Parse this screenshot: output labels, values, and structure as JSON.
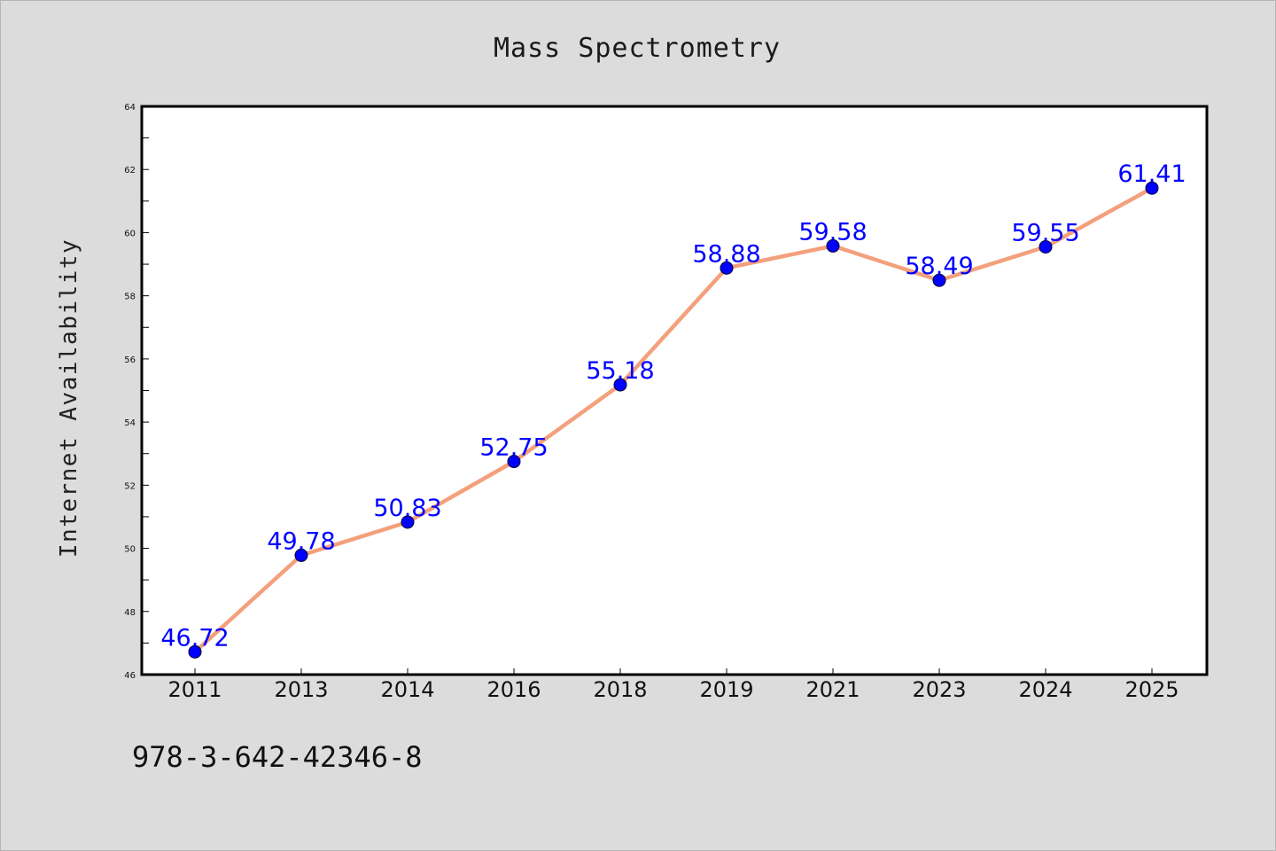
{
  "chart_data": {
    "type": "line",
    "title": "Mass Spectrometry",
    "xlabel": "",
    "ylabel": "Internet Availability",
    "x": [
      "2011",
      "2013",
      "2014",
      "2016",
      "2018",
      "2019",
      "2021",
      "2023",
      "2024",
      "2025"
    ],
    "series": [
      {
        "values": [
          46.72,
          49.78,
          50.83,
          52.75,
          55.18,
          58.88,
          59.58,
          58.49,
          59.55,
          61.41
        ],
        "labels": [
          "46.72",
          "49.78",
          "50.83",
          "52.75",
          "55.18",
          "58.88",
          "59.58",
          "58.49",
          "59.55",
          "61.41"
        ],
        "line_color": "#f4a07c",
        "marker_color": "#0000ff"
      }
    ],
    "ylim": [
      46,
      64
    ],
    "yticks": [
      "46",
      "48",
      "50",
      "52",
      "54",
      "56",
      "58",
      "60",
      "62",
      "64"
    ],
    "grid": false,
    "legend": "none"
  },
  "footer_text": "978-3-642-42346-8",
  "colors": {
    "background": "#dcdcdc",
    "plot_area": "#ffffff",
    "line": "#f4a07c",
    "marker": "#0000ff",
    "data_label": "#0000ff"
  }
}
